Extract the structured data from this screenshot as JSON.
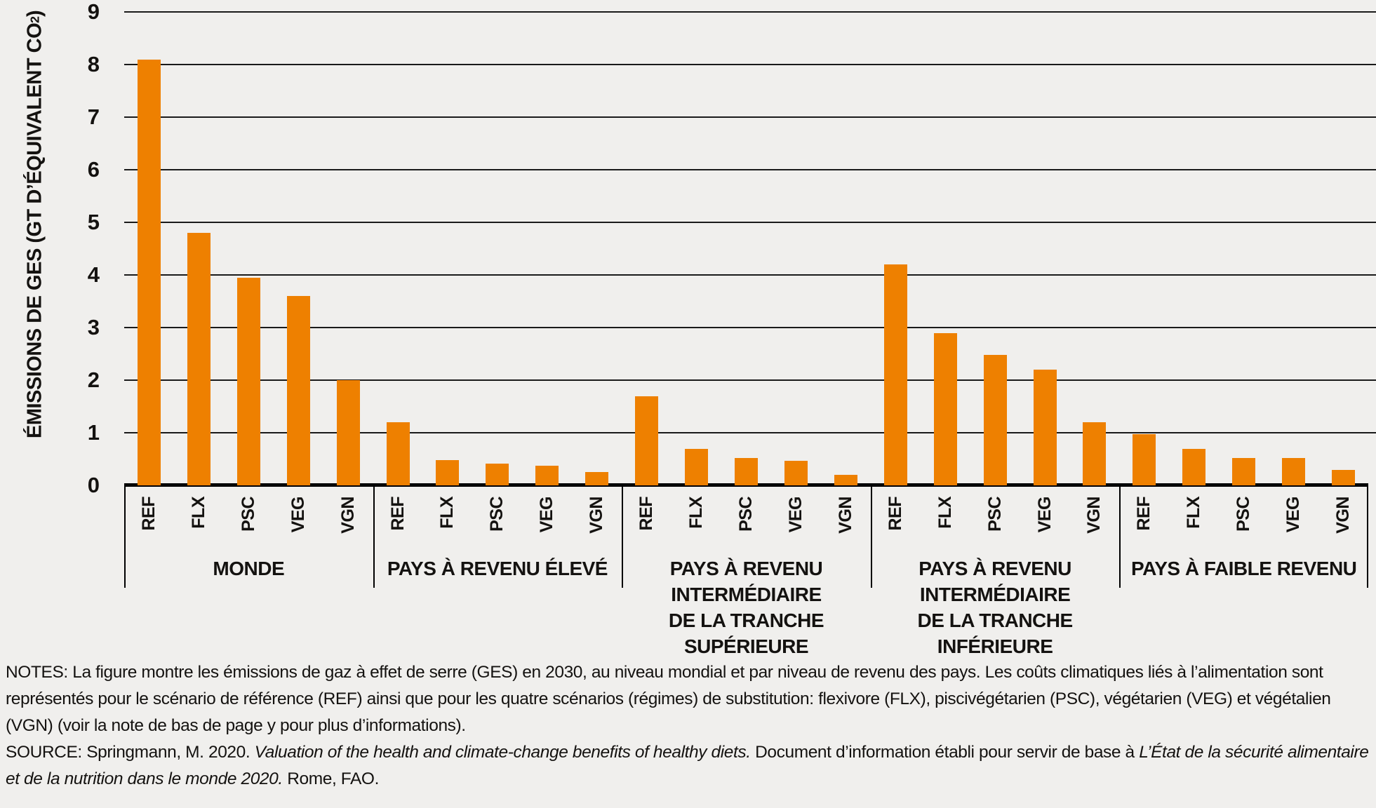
{
  "figure": {
    "background": "#F0EFED",
    "bar_color": "#EE8000",
    "text_color": "#141210"
  },
  "y_axis": {
    "title_prefix": "ÉMISSIONS DE GES (GT D’ÉQUIVALENT CO",
    "title_sub": "2",
    "title_suffix": ")",
    "ticks": [
      "0",
      "1",
      "2",
      "3",
      "4",
      "5",
      "6",
      "7",
      "8",
      "9"
    ]
  },
  "chart_data": {
    "type": "bar",
    "title": "",
    "xlabel": "",
    "ylabel": "ÉMISSIONS DE GES (GT D’ÉQUIVALENT CO₂)",
    "ylim": [
      0,
      9
    ],
    "grid": true,
    "legend": "none",
    "bar_color": "#EE8000",
    "categories": [
      "REF",
      "FLX",
      "PSC",
      "VEG",
      "VGN"
    ],
    "groups": [
      {
        "label_lines": [
          "MONDE"
        ],
        "values": [
          8.1,
          4.8,
          3.95,
          3.6,
          2.0
        ]
      },
      {
        "label_lines": [
          "PAYS À REVENU ÉLEVÉ"
        ],
        "values": [
          1.2,
          0.48,
          0.42,
          0.37,
          0.26
        ]
      },
      {
        "label_lines": [
          "PAYS À REVENU INTERMÉDIAIRE",
          "DE LA TRANCHE SUPÉRIEURE"
        ],
        "values": [
          1.7,
          0.7,
          0.52,
          0.47,
          0.2
        ]
      },
      {
        "label_lines": [
          "PAYS À REVENU INTERMÉDIAIRE",
          "DE LA TRANCHE INFÉRIEURE"
        ],
        "values": [
          4.2,
          2.9,
          2.48,
          2.2,
          1.2
        ]
      },
      {
        "label_lines": [
          "PAYS À FAIBLE REVENU"
        ],
        "values": [
          0.97,
          0.7,
          0.52,
          0.52,
          0.3
        ]
      }
    ]
  },
  "notes": {
    "notes_text": "NOTES: La figure montre les émissions de gaz à effet de serre (GES) en 2030, au niveau mondial et par niveau de revenu des pays. Les coûts climatiques liés à l’alimentation sont représentés pour le scénario de référence (REF) ainsi que pour les quatre scénarios (régimes) de substitution: flexivore (FLX), piscivégétarien (PSC), végétarien (VEG) et végétalien (VGN) (voir la note de bas de page y pour plus d’informations).",
    "source_prefix": "SOURCE: Springmann, M. 2020. ",
    "source_italic1": "Valuation of the health and climate-change benefits of healthy diets.",
    "source_middle": " Document d’information établi pour servir de base à ",
    "source_italic2": "L’État de la sécurité alimentaire et de la nutrition dans le monde 2020.",
    "source_suffix": " Rome, FAO."
  }
}
